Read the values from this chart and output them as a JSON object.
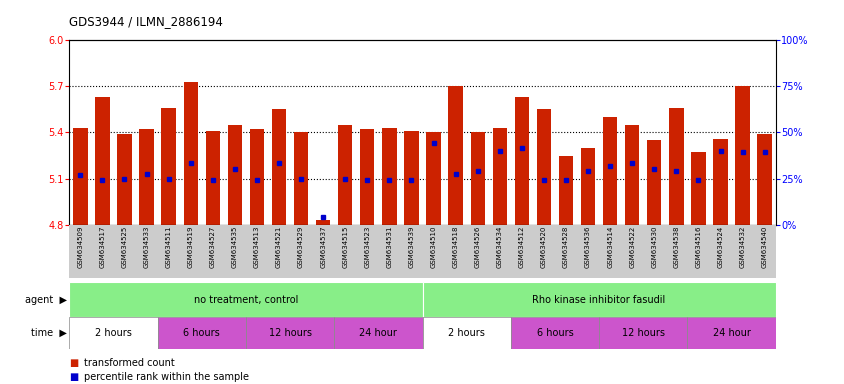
{
  "title": "GDS3944 / ILMN_2886194",
  "samples": [
    "GSM634509",
    "GSM634517",
    "GSM634525",
    "GSM634533",
    "GSM634511",
    "GSM634519",
    "GSM634527",
    "GSM634535",
    "GSM634513",
    "GSM634521",
    "GSM634529",
    "GSM634537",
    "GSM634515",
    "GSM634523",
    "GSM634531",
    "GSM634539",
    "GSM634510",
    "GSM634518",
    "GSM634526",
    "GSM634534",
    "GSM634512",
    "GSM634520",
    "GSM634528",
    "GSM634536",
    "GSM634514",
    "GSM634522",
    "GSM634530",
    "GSM634538",
    "GSM634516",
    "GSM634524",
    "GSM634532",
    "GSM634540"
  ],
  "bar_values": [
    5.43,
    5.63,
    5.39,
    5.42,
    5.56,
    5.73,
    5.41,
    5.45,
    5.42,
    5.55,
    5.4,
    4.83,
    5.45,
    5.42,
    5.43,
    5.41,
    5.4,
    5.7,
    5.4,
    5.43,
    5.63,
    5.55,
    5.25,
    5.3,
    5.5,
    5.45,
    5.35,
    5.56,
    5.27,
    5.36,
    5.7,
    5.39
  ],
  "percentile_values": [
    5.12,
    5.09,
    5.1,
    5.13,
    5.1,
    5.2,
    5.09,
    5.16,
    5.09,
    5.2,
    5.1,
    4.85,
    5.1,
    5.09,
    5.09,
    5.09,
    5.33,
    5.13,
    5.15,
    5.28,
    5.3,
    5.09,
    5.09,
    5.15,
    5.18,
    5.2,
    5.16,
    5.15,
    5.09,
    5.28,
    5.27,
    5.27
  ],
  "ylim": [
    4.8,
    6.0
  ],
  "yticks_left": [
    4.8,
    5.1,
    5.4,
    5.7,
    6.0
  ],
  "yticks_right": [
    0,
    25,
    50,
    75,
    100
  ],
  "bar_color": "#cc2200",
  "percentile_color": "#0000cc",
  "bg_color": "#ffffff",
  "dotted_lines": [
    5.1,
    5.4,
    5.7
  ],
  "label_bg": "#cccccc",
  "agent_groups": [
    {
      "label": "no treatment, control",
      "start": 0,
      "end": 16,
      "color": "#88ee88"
    },
    {
      "label": "Rho kinase inhibitor fasudil",
      "start": 16,
      "end": 32,
      "color": "#88ee88"
    }
  ],
  "time_groups": [
    {
      "label": "2 hours",
      "start": 0,
      "end": 4,
      "color": "#ffffff"
    },
    {
      "label": "6 hours",
      "start": 4,
      "end": 8,
      "color": "#cc55cc"
    },
    {
      "label": "12 hours",
      "start": 8,
      "end": 12,
      "color": "#cc55cc"
    },
    {
      "label": "24 hour",
      "start": 12,
      "end": 16,
      "color": "#cc55cc"
    },
    {
      "label": "2 hours",
      "start": 16,
      "end": 20,
      "color": "#ffffff"
    },
    {
      "label": "6 hours",
      "start": 20,
      "end": 24,
      "color": "#cc55cc"
    },
    {
      "label": "12 hours",
      "start": 24,
      "end": 28,
      "color": "#cc55cc"
    },
    {
      "label": "24 hour",
      "start": 28,
      "end": 32,
      "color": "#cc55cc"
    }
  ],
  "legend_items": [
    {
      "label": "transformed count",
      "color": "#cc2200"
    },
    {
      "label": "percentile rank within the sample",
      "color": "#0000cc"
    }
  ]
}
